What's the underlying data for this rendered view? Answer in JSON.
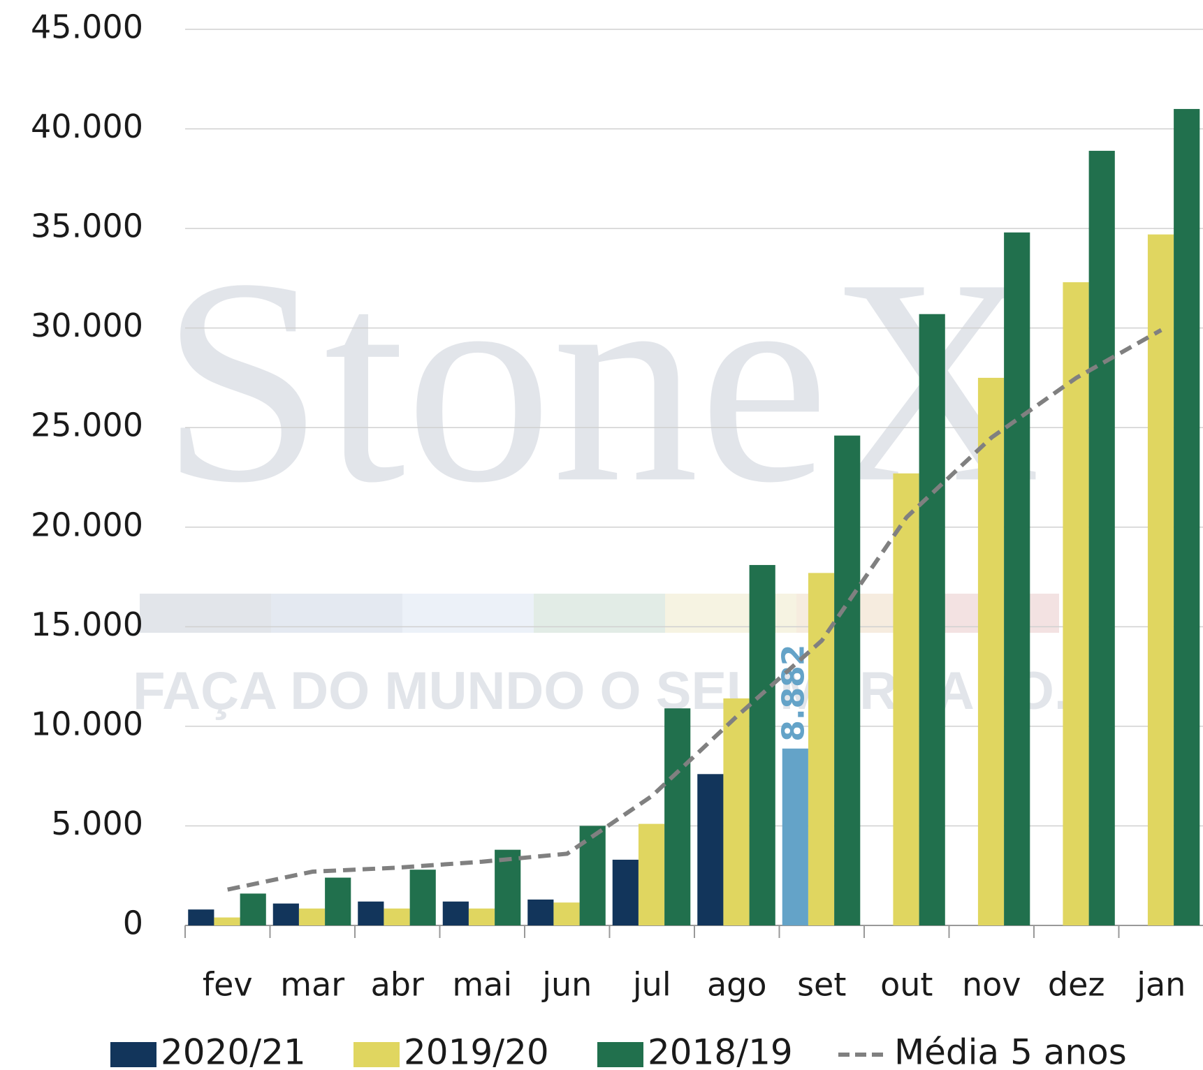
{
  "chart_data": {
    "type": "bar",
    "watermark": "StoneX",
    "watermark_tagline": "FAÇA DO MUNDO O SEU MERCADO.",
    "categories": [
      "fev",
      "mar",
      "abr",
      "mai",
      "jun",
      "jul",
      "ago",
      "set",
      "out",
      "nov",
      "dez",
      "jan"
    ],
    "series": [
      {
        "name": "2020/21",
        "color": "#12355b",
        "colors": [
          "#12355b",
          "#12355b",
          "#12355b",
          "#12355b",
          "#12355b",
          "#12355b",
          "#12355b",
          "#64a3c8",
          null,
          null,
          null,
          null
        ],
        "values": [
          800,
          1100,
          1200,
          1200,
          1300,
          3300,
          7600,
          8882,
          null,
          null,
          null,
          null
        ],
        "value_labels": [
          null,
          null,
          null,
          null,
          null,
          null,
          null,
          "8.882",
          null,
          null,
          null,
          null
        ]
      },
      {
        "name": "2019/20",
        "color": "#e0d660",
        "values": [
          400,
          850,
          850,
          850,
          1150,
          5100,
          11400,
          17700,
          22700,
          27500,
          32300,
          34700
        ]
      },
      {
        "name": "2018/19",
        "color": "#21704d",
        "values": [
          1600,
          2400,
          2800,
          3800,
          5000,
          10900,
          18100,
          24600,
          30700,
          34800,
          38900,
          41000
        ]
      },
      {
        "name": "Média 5 anos",
        "type": "line",
        "color": "#808080",
        "dashed": true,
        "values": [
          1800,
          2700,
          2900,
          3200,
          3600,
          6500,
          10500,
          14300,
          20500,
          24500,
          27500,
          29900
        ]
      }
    ],
    "ylim": [
      0,
      45000
    ],
    "yticks": [
      0,
      {
        "value": 5000,
        "label": "5.000"
      },
      {
        "value": 10000,
        "label": "10.000"
      },
      {
        "value": 15000,
        "label": "15.000"
      },
      {
        "value": 20000,
        "label": "20.000"
      },
      {
        "value": 25000,
        "label": "25.000"
      },
      {
        "value": 30000,
        "label": "30.000"
      },
      {
        "value": 35000,
        "label": "35.000"
      },
      {
        "value": 40000,
        "label": "40.000"
      },
      {
        "value": 45000,
        "label": "45.000"
      }
    ],
    "grid": true,
    "legend": "bottom"
  }
}
